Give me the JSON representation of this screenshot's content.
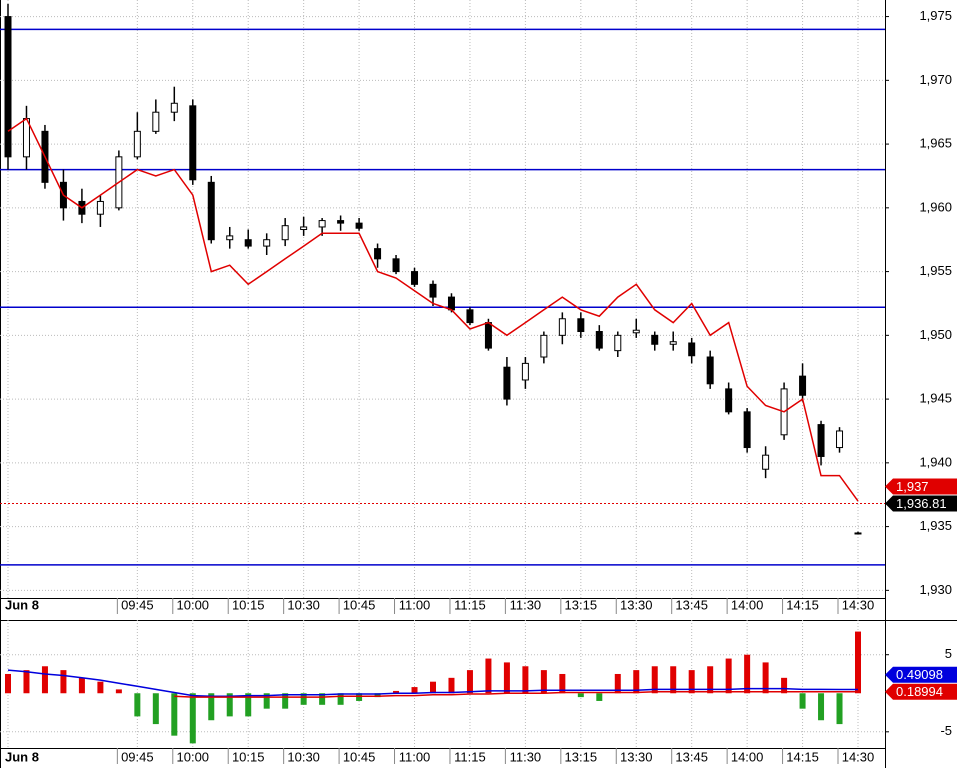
{
  "chart_data": [
    {
      "type": "candlestick",
      "categories": [
        "Jun 8",
        null,
        null,
        null,
        null,
        null,
        null,
        "09:45",
        null,
        null,
        "10:00",
        null,
        null,
        "10:15",
        null,
        null,
        "10:30",
        null,
        null,
        "10:45",
        null,
        null,
        "11:00",
        null,
        null,
        "11:15",
        null,
        null,
        "11:30",
        null,
        null,
        "13:15",
        null,
        null,
        "13:30",
        null,
        null,
        "13:45",
        null,
        null,
        "14:00",
        null,
        null,
        "14:15",
        null,
        null,
        "14:30"
      ],
      "open": [
        1975,
        1964,
        1966,
        1962,
        1960.5,
        1959.5,
        1960,
        1964,
        1966,
        1967.5,
        1968,
        1962,
        1957.5,
        1957.5,
        1957,
        1957.5,
        1958.3,
        1958.5,
        1959,
        1958.8,
        1956.8,
        1956,
        1955,
        1954,
        1953,
        1952,
        1951,
        1947.5,
        1946.5,
        1948.3,
        1950,
        1951.3,
        1950.3,
        1948.8,
        1950.2,
        1950,
        1949.3,
        1949.4,
        1948.3,
        1945.8,
        1944,
        1939.5,
        1942.2,
        1946.8,
        1943,
        1941.2,
        1934.5
      ],
      "high": [
        1976,
        1968,
        1966.5,
        1963,
        1961.5,
        1961,
        1964.5,
        1967.5,
        1968.5,
        1969.5,
        1968.5,
        1962.5,
        1958.5,
        1958.3,
        1958,
        1959.2,
        1959.3,
        1959.2,
        1959.4,
        1959.2,
        1957.2,
        1956.3,
        1955.3,
        1954.3,
        1953.3,
        1952.2,
        1951.3,
        1948.3,
        1948.3,
        1950.3,
        1951.8,
        1951.8,
        1950.8,
        1950.3,
        1951.3,
        1950.3,
        1950.3,
        1949.8,
        1948.8,
        1946.3,
        1944.3,
        1941.3,
        1946.3,
        1947.8,
        1943.3,
        1942.8,
        1934.6
      ],
      "low": [
        1963,
        1963,
        1961.5,
        1959,
        1958.8,
        1958.5,
        1959.8,
        1963.8,
        1965.8,
        1966.8,
        1961.8,
        1957.2,
        1956.8,
        1956.8,
        1956.3,
        1957,
        1957.8,
        1957.8,
        1958.2,
        1958.2,
        1955.3,
        1954.8,
        1953.8,
        1952.3,
        1951.8,
        1950.8,
        1948.8,
        1944.5,
        1945.8,
        1947.8,
        1949.3,
        1949.8,
        1948.8,
        1948.3,
        1949.8,
        1948.8,
        1948.8,
        1947.8,
        1945.8,
        1943.8,
        1940.8,
        1938.8,
        1941.8,
        1944.8,
        1939.8,
        1940.8,
        1934.4
      ],
      "close": [
        1964,
        1967,
        1962,
        1960,
        1959.5,
        1960.5,
        1964,
        1966,
        1967.5,
        1968.2,
        1962.2,
        1957.5,
        1957.8,
        1957,
        1957.5,
        1958.6,
        1958.5,
        1959,
        1958.8,
        1958.4,
        1956,
        1955,
        1954,
        1953,
        1952,
        1951,
        1949,
        1945,
        1947.8,
        1950,
        1951.3,
        1950.3,
        1949,
        1950,
        1950.4,
        1949.3,
        1949.5,
        1948.4,
        1946.2,
        1944,
        1941.2,
        1940.6,
        1945.8,
        1945.3,
        1940.5,
        1942.5,
        1934.5
      ],
      "candle_up_color": "#ffffff",
      "candle_down_color": "#000000",
      "overlay": {
        "color": "#e00000",
        "values": [
          1966,
          1967,
          1964,
          1961,
          1960,
          1961,
          1962,
          1963,
          1962.5,
          1963,
          1961,
          1955,
          1955.5,
          1954,
          1955,
          1956,
          1957,
          1958,
          1958,
          1958,
          1955,
          1954.5,
          1953.5,
          1952.5,
          1952,
          1950.5,
          1951,
          1950,
          1951,
          1952,
          1953,
          1952,
          1951.5,
          1953,
          1954,
          1952,
          1951,
          1952.5,
          1950,
          1951,
          1946,
          1944.5,
          1944,
          1945,
          1939,
          1939,
          1937
        ]
      },
      "hlines": {
        "color": "#0000cc",
        "values": [
          1974,
          1963,
          1952.2,
          1932
        ]
      },
      "last_line": {
        "color": "#e00000",
        "value": 1936.81
      },
      "markers": [
        {
          "value": 1937,
          "label": "1,937",
          "color": "#e00000"
        },
        {
          "value": 1936.81,
          "label": "1,936.81",
          "color": "#000000"
        }
      ],
      "ylim": [
        1929.4,
        1976.3
      ],
      "yticks": [
        {
          "value": 1930,
          "label": "1,930"
        },
        {
          "value": 1935,
          "label": "1,935"
        },
        {
          "value": 1940,
          "label": "1,940"
        },
        {
          "value": 1945,
          "label": "1,945"
        },
        {
          "value": 1950,
          "label": "1,950"
        },
        {
          "value": 1955,
          "label": "1,955"
        },
        {
          "value": 1960,
          "label": "1,960"
        },
        {
          "value": 1965,
          "label": "1,965"
        },
        {
          "value": 1970,
          "label": "1,970"
        },
        {
          "value": 1975,
          "label": "1,975"
        }
      ],
      "grid": true
    },
    {
      "type": "bar",
      "categories": [
        "Jun 8",
        null,
        null,
        null,
        null,
        null,
        null,
        "09:45",
        null,
        null,
        "10:00",
        null,
        null,
        "10:15",
        null,
        null,
        "10:30",
        null,
        null,
        "10:45",
        null,
        null,
        "11:00",
        null,
        null,
        "11:15",
        null,
        null,
        "11:30",
        null,
        null,
        "13:15",
        null,
        null,
        "13:30",
        null,
        null,
        "13:45",
        null,
        null,
        "14:00",
        null,
        null,
        "14:15",
        null,
        null,
        "14:30"
      ],
      "values": [
        2.5,
        3,
        3.5,
        3,
        2,
        1.5,
        0.5,
        -3,
        -4,
        -5.5,
        -6.5,
        -3.5,
        -3,
        -3,
        -2,
        -2,
        -1.5,
        -1.5,
        -1.5,
        -1,
        -0.5,
        0.3,
        0.8,
        1.5,
        2,
        3,
        4.5,
        4,
        3.5,
        3,
        2.5,
        -0.5,
        -1,
        2.5,
        3,
        3.5,
        3.5,
        3,
        3.5,
        4.5,
        5,
        4,
        2,
        -2,
        -3.5,
        -4,
        8
      ],
      "positive_color": "#e00000",
      "negative_color": "#22a022",
      "lines": [
        {
          "color": "#0000dd",
          "values": [
            3,
            2.8,
            2.5,
            2.3,
            2,
            1.7,
            1.3,
            0.9,
            0.5,
            0.1,
            -0.3,
            -0.4,
            -0.4,
            -0.3,
            -0.3,
            -0.2,
            -0.2,
            -0.2,
            -0.1,
            -0.1,
            -0.1,
            0,
            0,
            0.1,
            0.1,
            0.2,
            0.3,
            0.3,
            0.3,
            0.4,
            0.4,
            0.4,
            0.4,
            0.4,
            0.4,
            0.5,
            0.5,
            0.5,
            0.5,
            0.5,
            0.6,
            0.6,
            0.6,
            0.5,
            0.5,
            0.49,
            0.49
          ]
        },
        {
          "color": "#e00000",
          "values": [
            null,
            null,
            null,
            null,
            null,
            null,
            null,
            null,
            null,
            -0.4,
            -0.5,
            -0.5,
            -0.5,
            -0.5,
            -0.5,
            -0.5,
            -0.5,
            -0.5,
            -0.4,
            -0.4,
            -0.4,
            -0.3,
            -0.3,
            -0.2,
            -0.2,
            -0.1,
            -0.1,
            0,
            0,
            0,
            0.1,
            0.1,
            0.1,
            0.1,
            0.1,
            0.2,
            0.2,
            0.2,
            0.2,
            0.2,
            0.2,
            0.2,
            0.2,
            0.2,
            0.2,
            0.19,
            0.19
          ]
        }
      ],
      "markers": [
        {
          "value": 0.49098,
          "color": "#0000dd"
        },
        {
          "value": 0.18994,
          "color": "#e00000"
        }
      ],
      "ylim": [
        -7.1,
        9.5
      ],
      "yticks": [
        -5,
        5
      ],
      "grid": true
    }
  ]
}
